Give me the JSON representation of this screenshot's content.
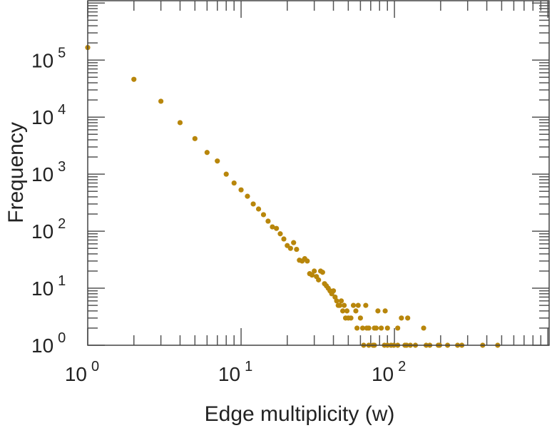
{
  "chart_data": {
    "type": "scatter",
    "title": "",
    "xlabel": "Edge multiplicity (w)",
    "ylabel": "Frequency",
    "xscale": "log",
    "yscale": "log",
    "xlim": [
      1,
      1020
    ],
    "ylim": [
      1,
      1100000
    ],
    "x_ticks": [
      {
        "base": "10",
        "exp": "0",
        "value": 1
      },
      {
        "base": "10",
        "exp": "1",
        "value": 10
      },
      {
        "base": "10",
        "exp": "2",
        "value": 100
      }
    ],
    "y_ticks": [
      {
        "base": "10",
        "exp": "0",
        "value": 1
      },
      {
        "base": "10",
        "exp": "1",
        "value": 10
      },
      {
        "base": "10",
        "exp": "2",
        "value": 100
      },
      {
        "base": "10",
        "exp": "3",
        "value": 1000
      },
      {
        "base": "10",
        "exp": "4",
        "value": 10000
      },
      {
        "base": "10",
        "exp": "5",
        "value": 100000
      }
    ],
    "grid": false,
    "marker_color": "#b8860b",
    "points": [
      [
        1,
        166000
      ],
      [
        2,
        46000
      ],
      [
        3,
        19000
      ],
      [
        4,
        8000
      ],
      [
        5,
        4200
      ],
      [
        6,
        2400
      ],
      [
        7,
        1700
      ],
      [
        8,
        1000
      ],
      [
        9,
        700
      ],
      [
        10,
        530
      ],
      [
        11,
        410
      ],
      [
        12,
        300
      ],
      [
        13,
        245
      ],
      [
        14,
        195
      ],
      [
        15,
        150
      ],
      [
        16,
        119
      ],
      [
        17,
        112
      ],
      [
        18,
        90
      ],
      [
        19,
        73
      ],
      [
        20,
        56
      ],
      [
        21,
        50
      ],
      [
        22,
        63
      ],
      [
        23,
        48
      ],
      [
        24,
        31
      ],
      [
        25,
        30
      ],
      [
        26,
        33
      ],
      [
        27,
        30
      ],
      [
        28,
        18
      ],
      [
        29,
        17
      ],
      [
        30,
        20
      ],
      [
        31,
        16
      ],
      [
        32,
        14
      ],
      [
        33,
        20
      ],
      [
        34,
        19
      ],
      [
        35,
        12
      ],
      [
        36,
        11
      ],
      [
        37,
        10
      ],
      [
        38,
        9
      ],
      [
        39,
        8
      ],
      [
        40,
        9
      ],
      [
        41,
        7
      ],
      [
        42,
        6
      ],
      [
        43,
        5
      ],
      [
        44,
        5
      ],
      [
        45,
        6
      ],
      [
        46,
        4
      ],
      [
        47,
        5
      ],
      [
        48,
        3
      ],
      [
        49,
        4
      ],
      [
        50,
        3
      ],
      [
        52,
        3
      ],
      [
        60,
        3
      ],
      [
        111,
        3
      ],
      [
        122,
        3
      ],
      [
        78,
        4
      ],
      [
        87,
        4
      ],
      [
        54,
        5
      ],
      [
        58,
        5
      ],
      [
        56,
        4
      ],
      [
        65,
        5
      ],
      [
        57,
        2
      ],
      [
        62,
        2
      ],
      [
        66,
        2
      ],
      [
        68,
        2
      ],
      [
        74,
        2
      ],
      [
        76,
        2
      ],
      [
        82,
        2
      ],
      [
        90,
        2
      ],
      [
        105,
        2
      ],
      [
        155,
        2
      ],
      [
        63,
        1
      ],
      [
        68,
        1
      ],
      [
        72.5,
        1
      ],
      [
        74,
        1
      ],
      [
        86,
        1
      ],
      [
        90,
        1
      ],
      [
        95,
        1
      ],
      [
        99,
        1
      ],
      [
        105,
        1
      ],
      [
        117,
        1
      ],
      [
        120,
        1
      ],
      [
        127,
        1
      ],
      [
        137,
        1
      ],
      [
        161,
        1
      ],
      [
        170,
        1
      ],
      [
        193,
        1
      ],
      [
        197,
        1
      ],
      [
        222,
        1
      ],
      [
        258,
        1
      ],
      [
        275,
        1
      ],
      [
        376,
        1
      ],
      [
        471,
        1
      ]
    ]
  }
}
